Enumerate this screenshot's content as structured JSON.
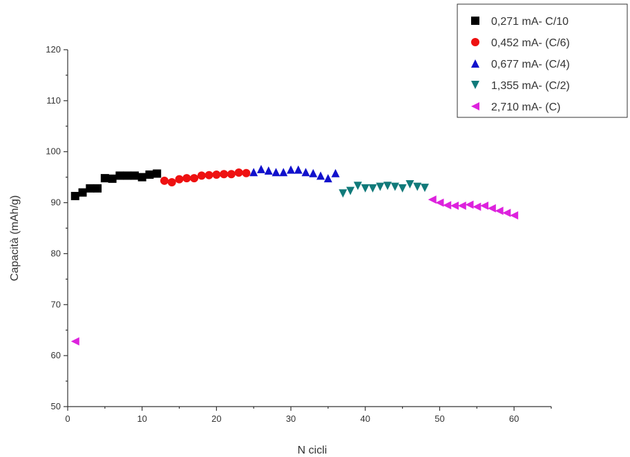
{
  "chart_data": {
    "type": "scatter",
    "title": "",
    "xlabel": "N cicli",
    "ylabel": "Capacità (mAh/g)",
    "xlim": [
      0,
      65
    ],
    "ylim": [
      50,
      120
    ],
    "x_ticks": [
      0,
      10,
      20,
      30,
      40,
      50,
      60
    ],
    "y_ticks": [
      50,
      60,
      70,
      80,
      90,
      100,
      110,
      120
    ],
    "grid": false,
    "legend_position": "top-right",
    "series": [
      {
        "name": "0,271 mA- C/10",
        "marker": "square",
        "color": "#000000",
        "x": [
          1,
          2,
          3,
          4,
          5,
          6,
          7,
          8,
          9,
          10,
          11,
          12
        ],
        "y": [
          91.3,
          92.0,
          92.8,
          92.8,
          94.8,
          94.7,
          95.3,
          95.3,
          95.3,
          95.0,
          95.5,
          95.7
        ]
      },
      {
        "name": "0,452 mA- (C/6)",
        "marker": "circle",
        "color": "#ee1111",
        "x": [
          13,
          14,
          15,
          16,
          17,
          18,
          19,
          20,
          21,
          22,
          23,
          24
        ],
        "y": [
          94.3,
          94.0,
          94.6,
          94.8,
          94.8,
          95.3,
          95.4,
          95.5,
          95.6,
          95.6,
          95.9,
          95.8
        ]
      },
      {
        "name": "0,677 mA- (C/4)",
        "marker": "triangle-up",
        "color": "#1111cc",
        "x": [
          25,
          26,
          27,
          28,
          29,
          30,
          31,
          32,
          33,
          34,
          35,
          36
        ],
        "y": [
          96.0,
          96.6,
          96.3,
          96.0,
          96.0,
          96.5,
          96.5,
          96.0,
          95.8,
          95.3,
          94.8,
          95.8
        ]
      },
      {
        "name": "1,355 mA- (C/2)",
        "marker": "triangle-down",
        "color": "#117a7a",
        "x": [
          37,
          38,
          39,
          40,
          41,
          42,
          43,
          44,
          45,
          46,
          47,
          48
        ],
        "y": [
          91.8,
          92.3,
          93.3,
          92.8,
          92.8,
          93.1,
          93.3,
          93.1,
          92.8,
          93.6,
          93.1,
          92.9
        ]
      },
      {
        "name": "2,710 mA- (C)",
        "marker": "triangle-left",
        "color": "#dd22dd",
        "x": [
          1,
          49,
          50,
          51,
          52,
          53,
          54,
          55,
          56,
          57,
          58,
          59,
          60
        ],
        "y": [
          62.8,
          90.6,
          90.0,
          89.5,
          89.4,
          89.4,
          89.6,
          89.2,
          89.4,
          88.9,
          88.4,
          88.0,
          87.5
        ]
      }
    ]
  }
}
